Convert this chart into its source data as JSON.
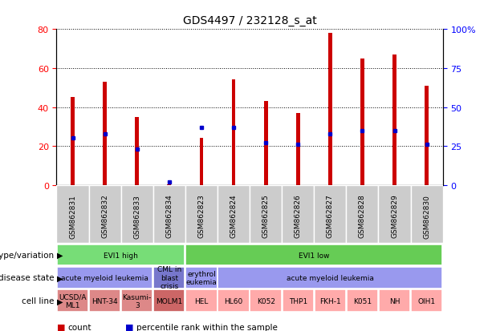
{
  "title": "GDS4497 / 232128_s_at",
  "samples": [
    "GSM862831",
    "GSM862832",
    "GSM862833",
    "GSM862834",
    "GSM862823",
    "GSM862824",
    "GSM862825",
    "GSM862826",
    "GSM862827",
    "GSM862828",
    "GSM862829",
    "GSM862830"
  ],
  "count_values": [
    45,
    53,
    35,
    0.5,
    24,
    54,
    43,
    37,
    78,
    65,
    67,
    51
  ],
  "percentile_values": [
    30,
    33,
    23,
    2,
    37,
    37,
    27,
    26,
    33,
    35,
    35,
    26
  ],
  "ylim_left": [
    0,
    80
  ],
  "ylim_right": [
    0,
    100
  ],
  "yticks_left": [
    0,
    20,
    40,
    60,
    80
  ],
  "ytick_labels_right": [
    "0",
    "25",
    "50",
    "75",
    "100%"
  ],
  "bar_color": "#cc0000",
  "percentile_color": "#0000cc",
  "plot_bg": "#ffffff",
  "xticklabel_bg": "#cccccc",
  "genotype_row": {
    "label": "genotype/variation",
    "groups": [
      {
        "text": "EVI1 high",
        "start": 0,
        "end": 4,
        "color": "#77dd77"
      },
      {
        "text": "EVI1 low",
        "start": 4,
        "end": 12,
        "color": "#66cc55"
      }
    ]
  },
  "disease_row": {
    "label": "disease state",
    "groups": [
      {
        "text": "acute myeloid leukemia",
        "start": 0,
        "end": 3,
        "color": "#9999ee"
      },
      {
        "text": "CML in\nblast\ncrisis",
        "start": 3,
        "end": 4,
        "color": "#7777cc"
      },
      {
        "text": "erythrol\neukemia",
        "start": 4,
        "end": 5,
        "color": "#9999ee"
      },
      {
        "text": "acute myeloid leukemia",
        "start": 5,
        "end": 12,
        "color": "#9999ee"
      }
    ]
  },
  "cellline_row": {
    "label": "cell line",
    "groups": [
      {
        "text": "UCSD/A\nML1",
        "start": 0,
        "end": 1,
        "color": "#dd8888"
      },
      {
        "text": "HNT-34",
        "start": 1,
        "end": 2,
        "color": "#dd8888"
      },
      {
        "text": "Kasumi-\n3",
        "start": 2,
        "end": 3,
        "color": "#dd8888"
      },
      {
        "text": "MOLM1",
        "start": 3,
        "end": 4,
        "color": "#cc6666"
      },
      {
        "text": "HEL",
        "start": 4,
        "end": 5,
        "color": "#ffaaaa"
      },
      {
        "text": "HL60",
        "start": 5,
        "end": 6,
        "color": "#ffaaaa"
      },
      {
        "text": "K052",
        "start": 6,
        "end": 7,
        "color": "#ffaaaa"
      },
      {
        "text": "THP1",
        "start": 7,
        "end": 8,
        "color": "#ffaaaa"
      },
      {
        "text": "FKH-1",
        "start": 8,
        "end": 9,
        "color": "#ffaaaa"
      },
      {
        "text": "K051",
        "start": 9,
        "end": 10,
        "color": "#ffaaaa"
      },
      {
        "text": "NH",
        "start": 10,
        "end": 11,
        "color": "#ffaaaa"
      },
      {
        "text": "OIH1",
        "start": 11,
        "end": 12,
        "color": "#ffaaaa"
      }
    ]
  },
  "legend_items": [
    {
      "color": "#cc0000",
      "label": "count"
    },
    {
      "color": "#0000cc",
      "label": "percentile rank within the sample"
    }
  ]
}
